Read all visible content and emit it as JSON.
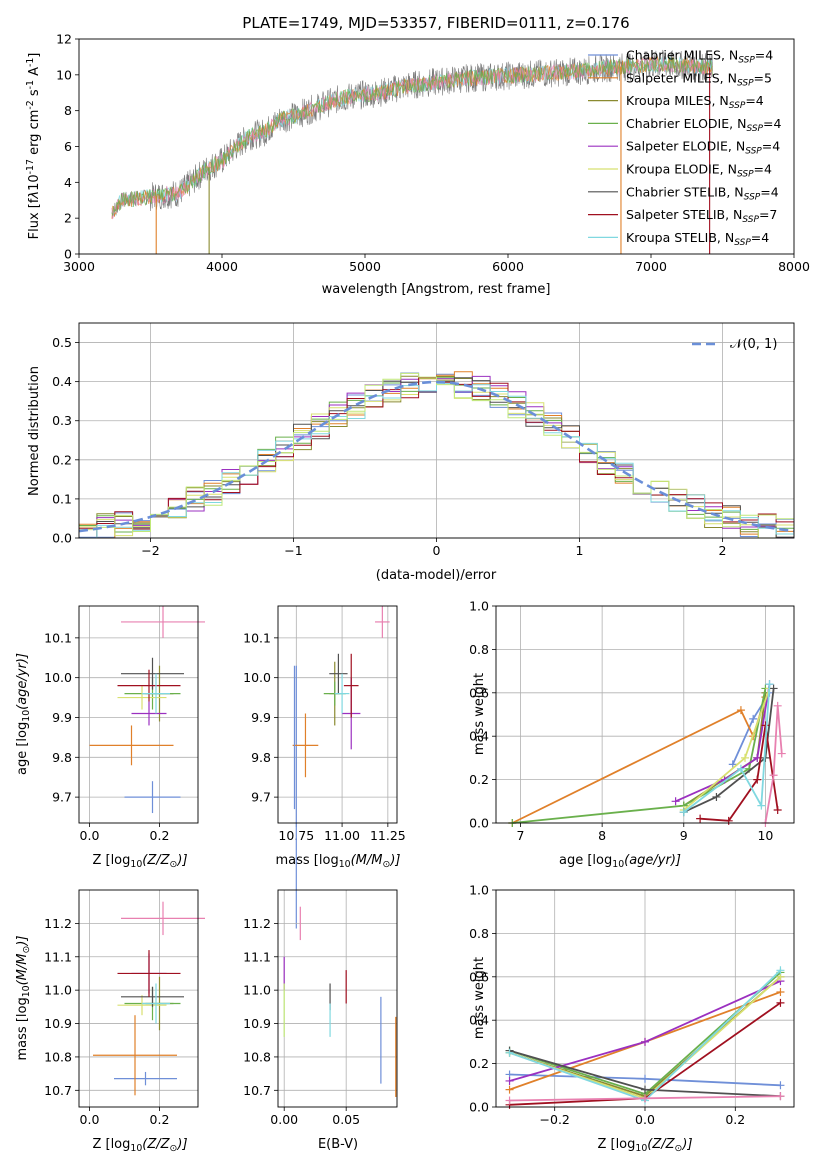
{
  "colors": {
    "grid": "#b0b0b0",
    "normal_curve": "#6a8fd8",
    "series": [
      "#6f8fd8",
      "#e0802a",
      "#8a8a30",
      "#6ab04c",
      "#9b30c0",
      "#d8e070",
      "#505050",
      "#a01020",
      "#80d8e0",
      "#e880b0",
      "#c0e878"
    ]
  },
  "chart_data": [
    {
      "id": "spectrum",
      "type": "line",
      "title": "PLATE=1749, MJD=53357, FIBERID=0111, z=0.176",
      "xlabel": "wavelength [Angstrom, rest frame]",
      "ylabel_parts": [
        "Flux [f",
        "λ",
        "10",
        "-17",
        " erg cm",
        "-2",
        " s",
        "-1",
        " A",
        "-1",
        "]"
      ],
      "xlim": [
        3000,
        8000
      ],
      "ylim": [
        0,
        12
      ],
      "xticks": [
        3000,
        4000,
        5000,
        6000,
        7000,
        8000
      ],
      "yticks": [
        0,
        2,
        4,
        6,
        8,
        10,
        12
      ],
      "grid": false,
      "legend_position": "top-right",
      "legend": [
        {
          "name": "Chabrier MILES",
          "n": "4"
        },
        {
          "name": "Salpeter MILES",
          "n": "5"
        },
        {
          "name": "Kroupa MILES",
          "n": "4"
        },
        {
          "name": "Chabrier ELODIE",
          "n": "4"
        },
        {
          "name": "Salpeter ELODIE",
          "n": "4"
        },
        {
          "name": "Kroupa ELODIE",
          "n": "4"
        },
        {
          "name": "Chabrier STELIB",
          "n": "4"
        },
        {
          "name": "Salpeter STELIB",
          "n": "7"
        },
        {
          "name": "Kroupa STELIB",
          "n": "4"
        }
      ],
      "legend_n_prefix": ", N",
      "legend_n_sub": "SSP",
      "continuum": [
        [
          3230,
          2.3
        ],
        [
          3300,
          3.0
        ],
        [
          3500,
          3.2
        ],
        [
          3600,
          3.3
        ],
        [
          3700,
          3.4
        ],
        [
          3800,
          4.1
        ],
        [
          3900,
          4.8
        ],
        [
          4000,
          5.2
        ],
        [
          4100,
          6.0
        ],
        [
          4200,
          6.6
        ],
        [
          4300,
          6.8
        ],
        [
          4400,
          7.5
        ],
        [
          4500,
          7.7
        ],
        [
          4600,
          8.0
        ],
        [
          4700,
          8.3
        ],
        [
          4800,
          8.6
        ],
        [
          4900,
          8.8
        ],
        [
          5000,
          8.9
        ],
        [
          5100,
          9.0
        ],
        [
          5200,
          9.2
        ],
        [
          5300,
          9.4
        ],
        [
          5500,
          9.6
        ],
        [
          5700,
          9.8
        ],
        [
          5900,
          9.9
        ],
        [
          6100,
          10.0
        ],
        [
          6300,
          10.1
        ],
        [
          6500,
          10.2
        ],
        [
          6700,
          10.4
        ],
        [
          6900,
          10.5
        ],
        [
          7100,
          10.6
        ],
        [
          7300,
          10.5
        ],
        [
          7430,
          10.4
        ]
      ],
      "noise_amplitude": 0.9,
      "model_edges": [
        {
          "x": 3540,
          "color_index": 1
        },
        {
          "x": 3910,
          "color_index": 2
        },
        {
          "x": 6790,
          "color_index": 1
        },
        {
          "x": 7410,
          "color_index": 7
        }
      ]
    },
    {
      "id": "residuals",
      "type": "histogram",
      "xlabel": "(data-model)/error",
      "ylabel": "Normed distribution",
      "xlim": [
        -2.5,
        2.5
      ],
      "ylim": [
        0,
        0.55
      ],
      "xticks": [
        -2,
        -1,
        0,
        1,
        2
      ],
      "yticks": [
        0,
        0.1,
        0.2,
        0.3,
        0.4,
        0.5
      ],
      "grid": true,
      "legend_position": "top-right",
      "legend": [
        "𝒩(0, 1)"
      ],
      "bin_width": 0.125,
      "normal": {
        "mean": 0,
        "sigma": 1
      }
    },
    {
      "id": "age_vs_Z",
      "type": "errorbar",
      "xlabel_parts": [
        "Z [log",
        "10",
        "(Z/Z",
        "⊙",
        ")]"
      ],
      "ylabel_parts": [
        "age  [log",
        "10",
        "(age/yr)]"
      ],
      "xlim": [
        -0.03,
        0.31
      ],
      "ylim": [
        9.635,
        10.18
      ],
      "xticks": [
        0.0,
        0.2
      ],
      "yticks": [
        9.7,
        9.8,
        9.9,
        10.0,
        10.1
      ],
      "grid": true,
      "points": [
        {
          "color_index": 0,
          "x": 0.18,
          "xerr": 0.08,
          "y": 9.7,
          "yerr": 0.04
        },
        {
          "color_index": 1,
          "x": 0.12,
          "xerr": 0.12,
          "y": 9.83,
          "yerr": 0.05
        },
        {
          "color_index": 2,
          "x": 0.2,
          "xerr": 0.04,
          "y": 9.96,
          "yerr": 0.07
        },
        {
          "color_index": 3,
          "x": 0.18,
          "xerr": 0.08,
          "y": 9.96,
          "yerr": 0.04
        },
        {
          "color_index": 4,
          "x": 0.17,
          "xerr": 0.05,
          "y": 9.91,
          "yerr": 0.03
        },
        {
          "color_index": 5,
          "x": 0.15,
          "xerr": 0.07,
          "y": 9.95,
          "yerr": 0.03
        },
        {
          "color_index": 6,
          "x": 0.18,
          "xerr": 0.09,
          "y": 10.01,
          "yerr": 0.04
        },
        {
          "color_index": 7,
          "x": 0.17,
          "xerr": 0.09,
          "y": 9.98,
          "yerr": 0.04
        },
        {
          "color_index": 8,
          "x": 0.19,
          "xerr": 0.04,
          "y": 9.96,
          "yerr": 0.05
        },
        {
          "color_index": 9,
          "x": 0.21,
          "xerr": 0.12,
          "y": 10.14,
          "yerr": 0.04
        }
      ]
    },
    {
      "id": "age_vs_mass",
      "type": "errorbar",
      "xlabel_parts": [
        "mass [log",
        "10",
        "(M/M",
        "⊙",
        ")]"
      ],
      "xlim": [
        10.65,
        11.3
      ],
      "ylim": [
        9.635,
        10.18
      ],
      "xticks": [
        10.75,
        11.0,
        11.25
      ],
      "yticks": [
        9.7,
        9.8,
        9.9,
        10.0,
        10.1
      ],
      "grid": true,
      "points": [
        {
          "color_index": 0,
          "x": 10.75,
          "xerr": 0.0,
          "y": 9.7,
          "yerr": 0.33
        },
        {
          "color_index": 1,
          "x": 10.8,
          "xerr": 0.07,
          "y": 9.83,
          "yerr": 0.08
        },
        {
          "color_index": 2,
          "x": 10.96,
          "xerr": 0.03,
          "y": 9.96,
          "yerr": 0.08
        },
        {
          "color_index": 3,
          "x": 10.96,
          "xerr": 0.06,
          "y": 9.96,
          "yerr": 0.03
        },
        {
          "color_index": 4,
          "x": 11.05,
          "xerr": 0.05,
          "y": 9.91,
          "yerr": 0.09
        },
        {
          "color_index": 6,
          "x": 10.98,
          "xerr": 0.05,
          "y": 10.01,
          "yerr": 0.05
        },
        {
          "color_index": 7,
          "x": 11.05,
          "xerr": 0.04,
          "y": 9.98,
          "yerr": 0.08
        },
        {
          "color_index": 8,
          "x": 11.0,
          "xerr": 0.04,
          "y": 9.96,
          "yerr": 0.05
        },
        {
          "color_index": 9,
          "x": 11.22,
          "xerr": 0.04,
          "y": 10.14,
          "yerr": 0.04
        },
        {
          "color_index": 0,
          "x": 10.74,
          "xerr": 0.0,
          "y": 9.85,
          "yerr": 0.18
        }
      ]
    },
    {
      "id": "weight_vs_age",
      "type": "line",
      "xlabel_parts": [
        "age  [log",
        "10",
        "(age/yr)]"
      ],
      "ylabel": "mass weight",
      "xlim": [
        6.7,
        10.35
      ],
      "ylim": [
        0,
        1.0
      ],
      "xticks": [
        7,
        8,
        9,
        10
      ],
      "yticks": [
        0.0,
        0.2,
        0.4,
        0.6,
        0.8,
        1.0
      ],
      "grid": true,
      "series": [
        {
          "color_index": 0,
          "x": [
            9.6,
            9.85,
            10.05
          ],
          "y": [
            0.27,
            0.48,
            0.6
          ]
        },
        {
          "color_index": 1,
          "x": [
            6.9,
            9.7,
            9.85,
            10.0
          ],
          "y": [
            0.0,
            0.52,
            0.4,
            0.58
          ]
        },
        {
          "color_index": 2,
          "x": [
            9.0,
            9.9,
            10.0
          ],
          "y": [
            0.08,
            0.3,
            0.6
          ]
        },
        {
          "color_index": 3,
          "x": [
            6.9,
            9.0,
            9.8,
            10.0
          ],
          "y": [
            0.0,
            0.08,
            0.25,
            0.62
          ]
        },
        {
          "color_index": 4,
          "x": [
            8.9,
            9.5,
            9.9,
            10.05
          ],
          "y": [
            0.1,
            0.2,
            0.3,
            0.64
          ]
        },
        {
          "color_index": 5,
          "x": [
            9.0,
            9.75,
            10.05
          ],
          "y": [
            0.06,
            0.3,
            0.62
          ]
        },
        {
          "color_index": 6,
          "x": [
            9.0,
            9.4,
            10.0,
            10.1
          ],
          "y": [
            0.05,
            0.12,
            0.3,
            0.62
          ]
        },
        {
          "color_index": 7,
          "x": [
            9.2,
            9.55,
            9.9,
            10.0,
            10.15
          ],
          "y": [
            0.02,
            0.01,
            0.2,
            0.45,
            0.06
          ]
        },
        {
          "color_index": 8,
          "x": [
            9.0,
            9.7,
            9.95,
            10.05
          ],
          "y": [
            0.05,
            0.25,
            0.08,
            0.64
          ]
        },
        {
          "color_index": 9,
          "x": [
            10.0,
            10.1,
            10.15,
            10.2
          ],
          "y": [
            0.0,
            0.22,
            0.54,
            0.32
          ]
        }
      ]
    },
    {
      "id": "mass_vs_Z",
      "type": "errorbar",
      "xlabel_parts": [
        "Z [log",
        "10",
        "(Z/Z",
        "⊙",
        ")]"
      ],
      "ylabel_parts": [
        "mass [log",
        "10",
        "(M/M",
        "⊙",
        ")]"
      ],
      "xlim": [
        -0.03,
        0.31
      ],
      "ylim": [
        10.65,
        11.3
      ],
      "xticks": [
        0.0,
        0.2
      ],
      "yticks": [
        10.7,
        10.8,
        10.9,
        11.0,
        11.1,
        11.2
      ],
      "grid": true,
      "points": [
        {
          "color_index": 0,
          "x": 0.16,
          "xerr": 0.09,
          "y": 10.735,
          "yerr": 0.02
        },
        {
          "color_index": 1,
          "x": 0.13,
          "xerr": 0.12,
          "y": 10.805,
          "yerr": 0.12
        },
        {
          "color_index": 2,
          "x": 0.2,
          "xerr": 0.04,
          "y": 10.96,
          "yerr": 0.08
        },
        {
          "color_index": 3,
          "x": 0.18,
          "xerr": 0.08,
          "y": 10.96,
          "yerr": 0.05
        },
        {
          "color_index": 4,
          "x": 0.17,
          "xerr": 0.05,
          "y": 11.05,
          "yerr": 0.06
        },
        {
          "color_index": 5,
          "x": 0.15,
          "xerr": 0.07,
          "y": 10.955,
          "yerr": 0.03
        },
        {
          "color_index": 6,
          "x": 0.18,
          "xerr": 0.09,
          "y": 10.98,
          "yerr": 0.03
        },
        {
          "color_index": 7,
          "x": 0.17,
          "xerr": 0.09,
          "y": 11.05,
          "yerr": 0.07
        },
        {
          "color_index": 8,
          "x": 0.19,
          "xerr": 0.04,
          "y": 10.96,
          "yerr": 0.06
        },
        {
          "color_index": 9,
          "x": 0.21,
          "xerr": 0.12,
          "y": 11.215,
          "yerr": 0.05
        }
      ]
    },
    {
      "id": "mass_vs_ebv",
      "type": "errorbar",
      "xlabel": "E(B-V)",
      "xlim": [
        -0.005,
        0.091
      ],
      "ylim": [
        10.65,
        11.3
      ],
      "xticks": [
        0.0,
        0.05
      ],
      "yticks": [
        10.7,
        10.8,
        10.9,
        11.0,
        11.1,
        11.2
      ],
      "grid": true,
      "points": [
        {
          "color_index": 4,
          "x": 0.0,
          "xerr": 0.0,
          "y": 11.05,
          "yerr": 0.05
        },
        {
          "color_index": 10,
          "x": 0.0,
          "xerr": 0.0,
          "y": 10.94,
          "yerr": 0.08
        },
        {
          "color_index": 9,
          "x": 0.013,
          "xerr": 0.0,
          "y": 11.2,
          "yerr": 0.05
        },
        {
          "color_index": 6,
          "x": 0.037,
          "xerr": 0.0,
          "y": 10.98,
          "yerr": 0.04
        },
        {
          "color_index": 8,
          "x": 0.037,
          "xerr": 0.0,
          "y": 10.91,
          "yerr": 0.05
        },
        {
          "color_index": 7,
          "x": 0.05,
          "xerr": 0.0,
          "y": 11.01,
          "yerr": 0.05
        },
        {
          "color_index": 0,
          "x": 0.078,
          "xerr": 0.0,
          "y": 10.85,
          "yerr": 0.13
        },
        {
          "color_index": 1,
          "x": 0.09,
          "xerr": 0.0,
          "y": 10.8,
          "yerr": 0.12
        }
      ]
    },
    {
      "id": "weight_vs_Z",
      "type": "line",
      "xlabel_parts": [
        "Z [log",
        "10",
        "(Z/Z",
        "⊙",
        ")]"
      ],
      "ylabel": "mass weight",
      "xlim": [
        -0.33,
        0.33
      ],
      "ylim": [
        0,
        1.0
      ],
      "xticks": [
        -0.2,
        0.0,
        0.2
      ],
      "yticks": [
        0.0,
        0.2,
        0.4,
        0.6,
        0.8,
        1.0
      ],
      "grid": true,
      "series": [
        {
          "color_index": 0,
          "x": [
            -0.3,
            0.0,
            0.3
          ],
          "y": [
            0.15,
            0.13,
            0.1
          ]
        },
        {
          "color_index": 1,
          "x": [
            -0.3,
            0.0,
            0.3
          ],
          "y": [
            0.08,
            0.3,
            0.53
          ]
        },
        {
          "color_index": 2,
          "x": [
            -0.3,
            0.0,
            0.3
          ],
          "y": [
            0.25,
            0.05,
            0.6
          ]
        },
        {
          "color_index": 3,
          "x": [
            -0.3,
            0.0,
            0.3
          ],
          "y": [
            0.26,
            0.06,
            0.62
          ]
        },
        {
          "color_index": 4,
          "x": [
            -0.3,
            0.0,
            0.3
          ],
          "y": [
            0.12,
            0.3,
            0.58
          ]
        },
        {
          "color_index": 5,
          "x": [
            -0.3,
            0.0,
            0.3
          ],
          "y": [
            0.25,
            0.04,
            0.6
          ]
        },
        {
          "color_index": 6,
          "x": [
            -0.3,
            0.0,
            0.3
          ],
          "y": [
            0.26,
            0.08,
            0.05
          ]
        },
        {
          "color_index": 7,
          "x": [
            -0.3,
            0.0,
            0.3
          ],
          "y": [
            0.01,
            0.04,
            0.48
          ]
        },
        {
          "color_index": 8,
          "x": [
            -0.3,
            0.0,
            0.3
          ],
          "y": [
            0.25,
            0.03,
            0.63
          ]
        },
        {
          "color_index": 9,
          "x": [
            -0.3,
            0.0,
            0.3
          ],
          "y": [
            0.03,
            0.04,
            0.05
          ]
        }
      ]
    }
  ]
}
